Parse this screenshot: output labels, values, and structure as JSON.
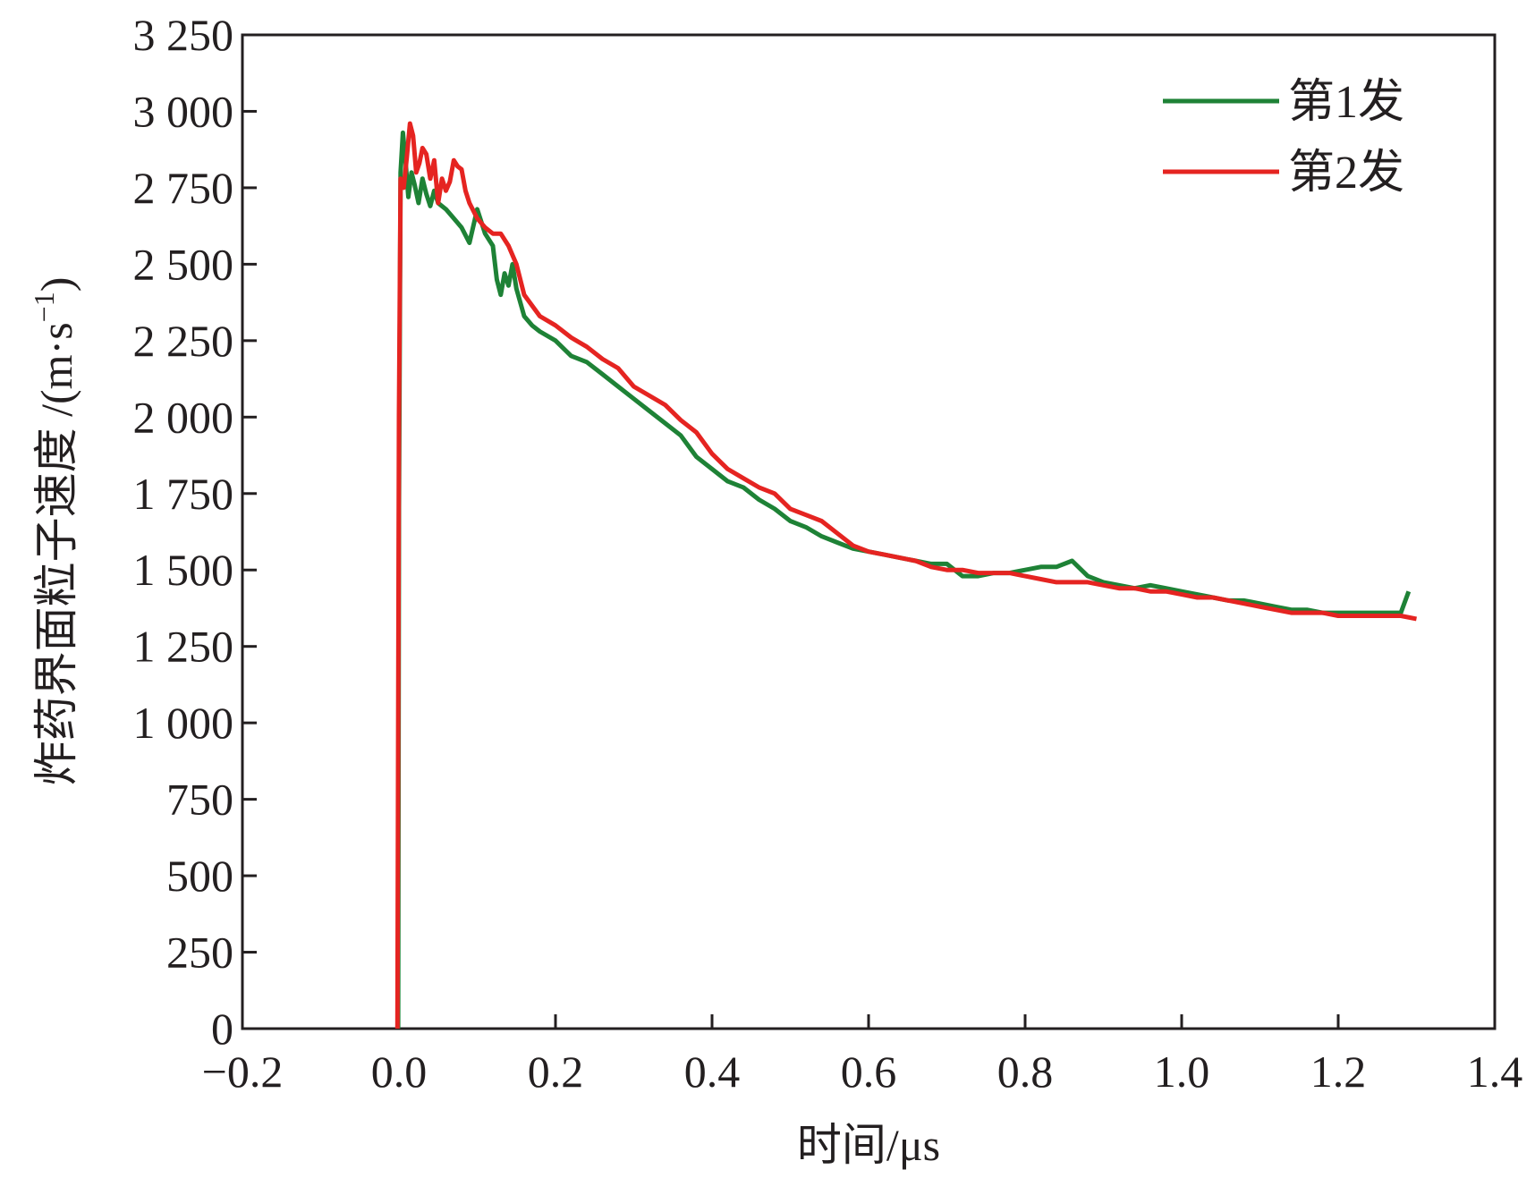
{
  "chart_data": {
    "type": "line",
    "xlabel": "时间/μs",
    "ylabel": "炸药界面粒子速度 /(m·s",
    "ylabel_sup": "−1",
    "ylabel_close": ")",
    "xlim": [
      -0.2,
      1.4
    ],
    "ylim": [
      0,
      3250
    ],
    "x_ticks": [
      -0.2,
      0.0,
      0.2,
      0.4,
      0.6,
      0.8,
      1.0,
      1.2,
      1.4
    ],
    "x_tick_labels": [
      "−0.2",
      "0.0",
      "0.2",
      "0.4",
      "0.6",
      "0.8",
      "1.0",
      "1.2",
      "1.4"
    ],
    "y_ticks": [
      0,
      250,
      500,
      750,
      1000,
      1250,
      1500,
      1750,
      2000,
      2250,
      2500,
      2750,
      3000,
      3250
    ],
    "y_tick_labels": [
      "0",
      "250",
      "500",
      "750",
      "1 000",
      "1 250",
      "1 500",
      "1 750",
      "2 000",
      "2 250",
      "2 500",
      "2 750",
      "3 000",
      "3 250"
    ],
    "grid": false,
    "legend_position": "top-right",
    "series": [
      {
        "name": "第1发",
        "color": "#1e8236",
        "x": [
          -0.001,
          0.0,
          0.002,
          0.005,
          0.008,
          0.012,
          0.016,
          0.02,
          0.025,
          0.03,
          0.035,
          0.04,
          0.045,
          0.05,
          0.06,
          0.07,
          0.08,
          0.09,
          0.1,
          0.11,
          0.12,
          0.125,
          0.13,
          0.135,
          0.14,
          0.145,
          0.15,
          0.16,
          0.17,
          0.18,
          0.2,
          0.22,
          0.24,
          0.26,
          0.28,
          0.3,
          0.32,
          0.34,
          0.36,
          0.38,
          0.4,
          0.42,
          0.44,
          0.46,
          0.48,
          0.5,
          0.52,
          0.54,
          0.56,
          0.58,
          0.6,
          0.62,
          0.64,
          0.66,
          0.68,
          0.7,
          0.72,
          0.74,
          0.76,
          0.78,
          0.8,
          0.82,
          0.84,
          0.86,
          0.88,
          0.9,
          0.92,
          0.94,
          0.96,
          0.98,
          1.0,
          1.02,
          1.04,
          1.06,
          1.08,
          1.1,
          1.12,
          1.14,
          1.16,
          1.18,
          1.2,
          1.22,
          1.24,
          1.26,
          1.28,
          1.29
        ],
        "values": [
          0,
          1700,
          2800,
          2930,
          2850,
          2720,
          2800,
          2760,
          2700,
          2780,
          2730,
          2690,
          2740,
          2700,
          2680,
          2650,
          2620,
          2570,
          2680,
          2600,
          2560,
          2450,
          2400,
          2470,
          2430,
          2500,
          2420,
          2330,
          2300,
          2280,
          2250,
          2200,
          2180,
          2140,
          2100,
          2060,
          2020,
          1980,
          1940,
          1870,
          1830,
          1790,
          1770,
          1730,
          1700,
          1660,
          1640,
          1610,
          1590,
          1570,
          1560,
          1550,
          1540,
          1530,
          1520,
          1520,
          1480,
          1480,
          1490,
          1490,
          1500,
          1510,
          1510,
          1530,
          1480,
          1460,
          1450,
          1440,
          1450,
          1440,
          1430,
          1420,
          1410,
          1400,
          1400,
          1390,
          1380,
          1370,
          1370,
          1360,
          1360,
          1360,
          1360,
          1360,
          1360,
          1430
        ]
      },
      {
        "name": "第2发",
        "color": "#e52421",
        "x": [
          -0.002,
          0.0,
          0.002,
          0.006,
          0.01,
          0.014,
          0.018,
          0.022,
          0.026,
          0.03,
          0.035,
          0.04,
          0.045,
          0.05,
          0.055,
          0.06,
          0.065,
          0.07,
          0.075,
          0.08,
          0.085,
          0.09,
          0.1,
          0.11,
          0.12,
          0.13,
          0.14,
          0.15,
          0.16,
          0.18,
          0.2,
          0.22,
          0.24,
          0.26,
          0.28,
          0.3,
          0.32,
          0.34,
          0.36,
          0.38,
          0.4,
          0.42,
          0.44,
          0.46,
          0.48,
          0.5,
          0.52,
          0.54,
          0.56,
          0.58,
          0.6,
          0.62,
          0.64,
          0.66,
          0.68,
          0.7,
          0.72,
          0.74,
          0.76,
          0.78,
          0.8,
          0.82,
          0.84,
          0.86,
          0.88,
          0.9,
          0.92,
          0.94,
          0.96,
          0.98,
          1.0,
          1.02,
          1.04,
          1.06,
          1.08,
          1.1,
          1.12,
          1.14,
          1.16,
          1.18,
          1.2,
          1.22,
          1.24,
          1.26,
          1.28,
          1.3
        ],
        "values": [
          0,
          2000,
          2780,
          2750,
          2850,
          2960,
          2920,
          2800,
          2830,
          2880,
          2860,
          2780,
          2840,
          2700,
          2780,
          2740,
          2770,
          2840,
          2820,
          2810,
          2740,
          2700,
          2650,
          2620,
          2600,
          2600,
          2560,
          2500,
          2400,
          2330,
          2300,
          2260,
          2230,
          2190,
          2160,
          2100,
          2070,
          2040,
          1990,
          1950,
          1880,
          1830,
          1800,
          1770,
          1750,
          1700,
          1680,
          1660,
          1620,
          1580,
          1560,
          1550,
          1540,
          1530,
          1510,
          1500,
          1500,
          1490,
          1490,
          1490,
          1480,
          1470,
          1460,
          1460,
          1460,
          1450,
          1440,
          1440,
          1430,
          1430,
          1420,
          1410,
          1410,
          1400,
          1390,
          1380,
          1370,
          1360,
          1360,
          1360,
          1350,
          1350,
          1350,
          1350,
          1350,
          1340
        ]
      }
    ]
  }
}
